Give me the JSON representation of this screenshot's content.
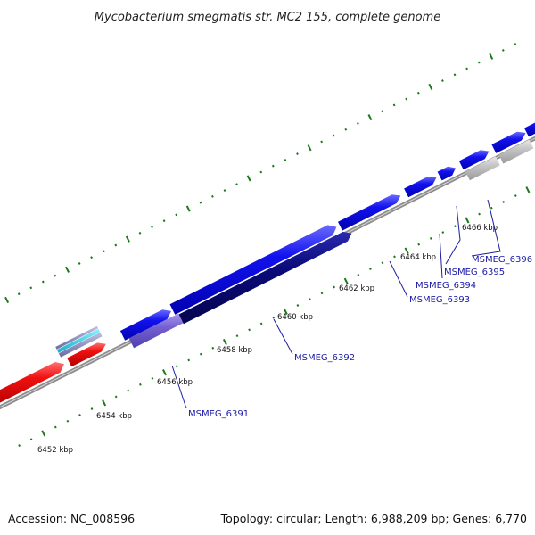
{
  "title": "Mycobacterium smegmatis str. MC2 155, complete genome",
  "footer": {
    "accession": "Accession: NC_008596",
    "summary": "Topology: circular; Length: 6,988,209 bp; Genes: 6,770"
  },
  "ticks": [
    {
      "label": "6452 kbp"
    },
    {
      "label": "6454 kbp"
    },
    {
      "label": "6456 kbp"
    },
    {
      "label": "6458 kbp"
    },
    {
      "label": "6460 kbp"
    },
    {
      "label": "6462 kbp"
    },
    {
      "label": "6464 kbp"
    },
    {
      "label": "6466 kbp"
    }
  ],
  "genes": [
    {
      "label": "MSMEG_6391"
    },
    {
      "label": "MSMEG_6392"
    },
    {
      "label": "MSMEG_6393"
    },
    {
      "label": "MSMEG_6394"
    },
    {
      "label": "MSMEG_6395"
    },
    {
      "label": "MSMEG_6396"
    }
  ],
  "colors": {
    "backbone": "#8c8c8c",
    "cds_forward": "#1010ee",
    "cds_dark": "#0a0a78",
    "cds_light": "#7460d0",
    "rna": "#ee1010",
    "trna": "#20c0d0",
    "pseudo": "#c0c0c0",
    "tick": "#1a7a1a",
    "label_line": "#1a1aa6"
  }
}
